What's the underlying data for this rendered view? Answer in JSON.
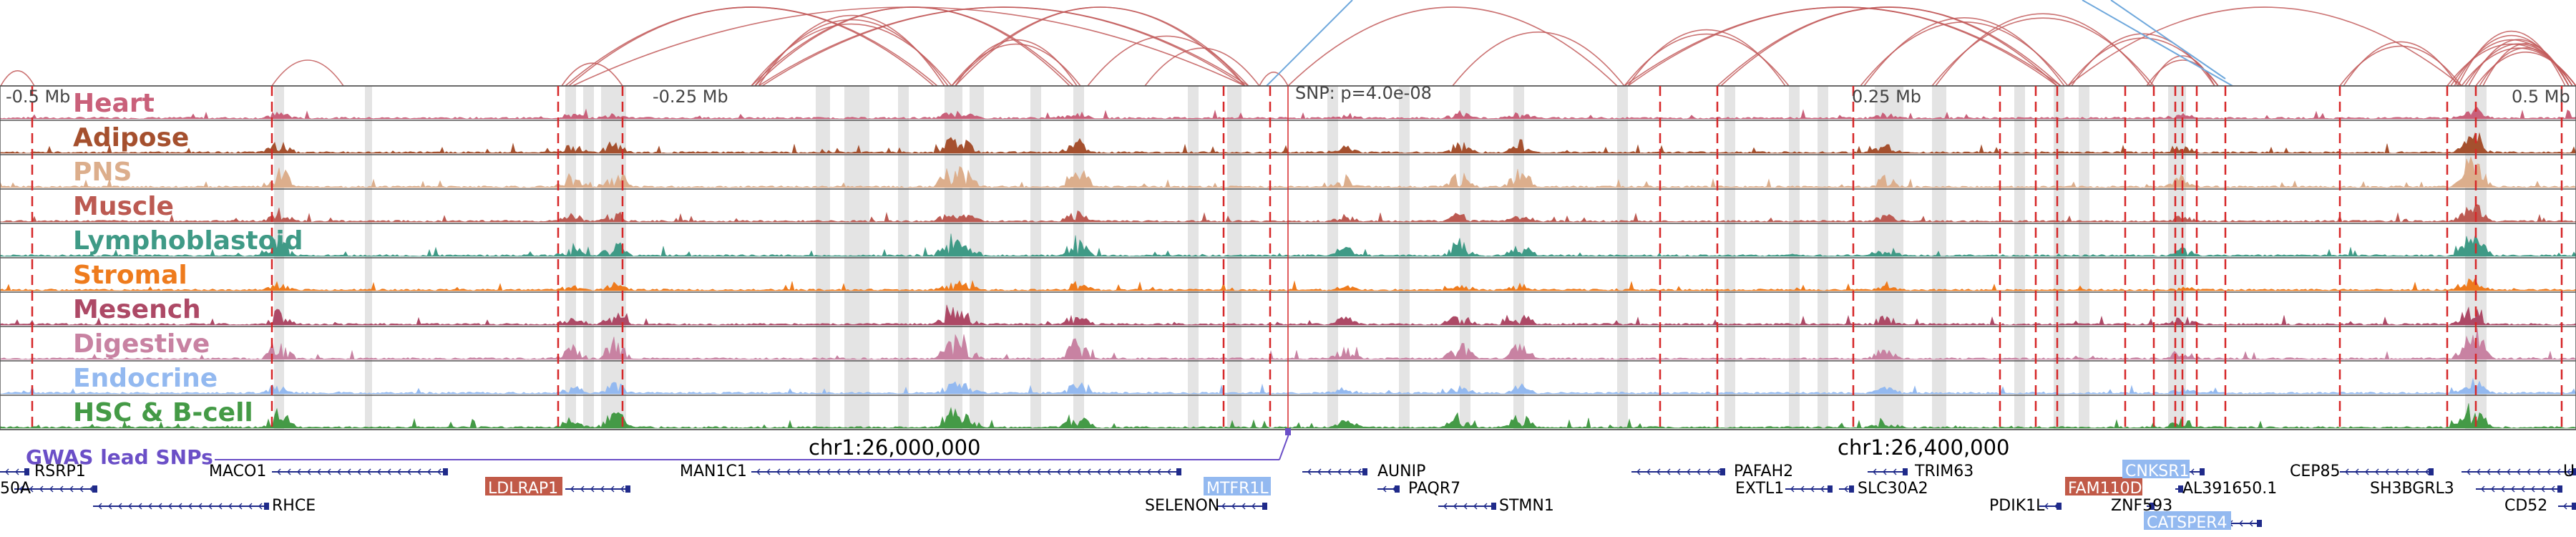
{
  "tracks": [
    {
      "label": "Heart",
      "color": "#c9607a"
    },
    {
      "label": "Adipose",
      "color": "#a5502e"
    },
    {
      "label": "PNS",
      "color": "#dcae8c"
    },
    {
      "label": "Muscle",
      "color": "#bc5a52"
    },
    {
      "label": "Lymphoblastoid",
      "color": "#3f9a86"
    },
    {
      "label": "Stromal",
      "color": "#ee7b1d"
    },
    {
      "label": "Mesench",
      "color": "#ad4966"
    },
    {
      "label": "Digestive",
      "color": "#c882a2"
    },
    {
      "label": "Endocrine",
      "color": "#93b9f0"
    },
    {
      "label": "HSC & B-cell",
      "color": "#449a46"
    }
  ],
  "distance_labels": [
    "-0.5 Mb",
    "-0.25 Mb",
    "0.25 Mb",
    "0.5 Mb"
  ],
  "snp_label": "SNP: p=4.0e-08",
  "gwas_label": "GWAS lead SNPs",
  "coordinates": [
    "chr1:26,000,000",
    "chr1:26,400,000"
  ],
  "genes": [
    {
      "name": "RSRP1",
      "highlight": false
    },
    {
      "name": "50A",
      "highlight": false
    },
    {
      "name": "MACO1",
      "highlight": false
    },
    {
      "name": "RHCE",
      "highlight": false
    },
    {
      "name": "LDLRAP1",
      "highlight": true,
      "hl_color": "#c15a48"
    },
    {
      "name": "MAN1C1",
      "highlight": false
    },
    {
      "name": "SELENON",
      "highlight": false
    },
    {
      "name": "MTFR1L",
      "highlight": true,
      "hl_color": "#93b9f0"
    },
    {
      "name": "AUNIP",
      "highlight": false
    },
    {
      "name": "PAQR7",
      "highlight": false
    },
    {
      "name": "STMN1",
      "highlight": false
    },
    {
      "name": "PAFAH2",
      "highlight": false
    },
    {
      "name": "EXTL1",
      "highlight": false
    },
    {
      "name": "SLC30A2",
      "highlight": false
    },
    {
      "name": "TRIM63",
      "highlight": false
    },
    {
      "name": "PDIK1L",
      "highlight": false
    },
    {
      "name": "FAM110D",
      "highlight": true,
      "hl_color": "#c15a48"
    },
    {
      "name": "ZNF593",
      "highlight": false
    },
    {
      "name": "CNKSR1",
      "highlight": true,
      "hl_color": "#93b9f0"
    },
    {
      "name": "CATSPER4",
      "highlight": true,
      "hl_color": "#93b9f0"
    },
    {
      "name": "AL391650.1",
      "highlight": false
    },
    {
      "name": "CEP85",
      "highlight": false
    },
    {
      "name": "SH3BGRL3",
      "highlight": false
    },
    {
      "name": "CD52",
      "highlight": false
    },
    {
      "name": "UB",
      "highlight": false
    }
  ],
  "colors": {
    "snp_line": "#d62728",
    "gwas": "#6b4fc7",
    "region_shade": "#d9d9d9",
    "gene": "#1f2a8a",
    "arc_red": "#c25a5a",
    "arc_blue": "#6fa8dc"
  }
}
